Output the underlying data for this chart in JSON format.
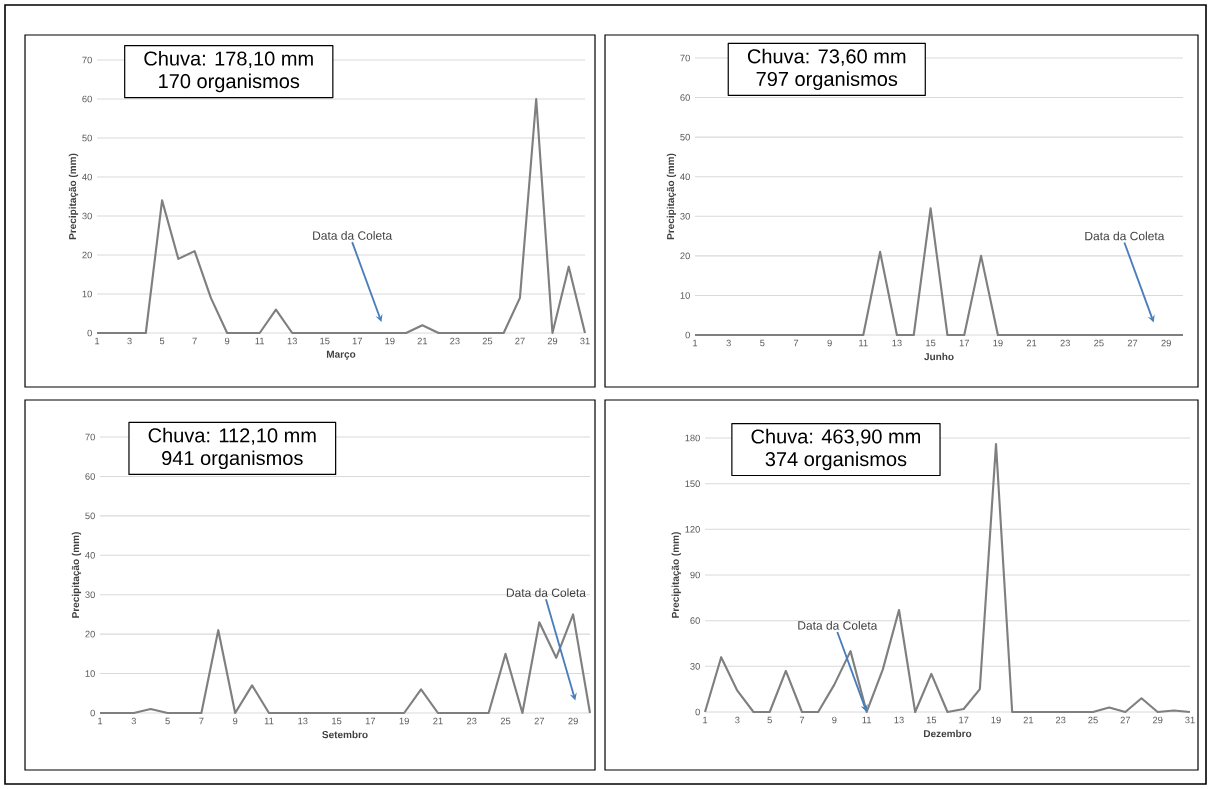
{
  "chart_data": [
    {
      "type": "line",
      "xlabel": "Março",
      "ylabel": "Precipitação (mm)",
      "color": "#7f7f7f",
      "grid": "y",
      "x": [
        1,
        2,
        3,
        4,
        5,
        6,
        7,
        8,
        9,
        10,
        11,
        12,
        13,
        14,
        15,
        16,
        17,
        18,
        19,
        20,
        21,
        22,
        23,
        24,
        25,
        26,
        27,
        28,
        29,
        30,
        31
      ],
      "values": [
        0,
        0,
        0,
        0,
        34,
        19,
        21,
        9,
        0,
        0,
        0,
        6,
        0,
        0,
        0,
        0,
        0,
        0,
        0,
        0,
        2,
        0,
        0,
        0,
        0,
        0,
        9,
        60,
        0,
        17,
        0
      ],
      "xlim": [
        1,
        31
      ],
      "ylim": [
        0,
        70
      ],
      "xticks": [
        1,
        3,
        5,
        7,
        9,
        11,
        13,
        15,
        17,
        19,
        21,
        23,
        25,
        27,
        29,
        31
      ],
      "yticks": [
        0,
        10,
        20,
        30,
        40,
        50,
        60,
        70
      ],
      "annotations": [
        "Chuva: 178,10 mm",
        "170 organismos",
        "Data da Coleta"
      ]
    },
    {
      "type": "line",
      "xlabel": "Junho",
      "ylabel": "Precipitação (mm)",
      "color": "#7f7f7f",
      "grid": "y",
      "x": [
        1,
        2,
        3,
        4,
        5,
        6,
        7,
        8,
        9,
        10,
        11,
        12,
        13,
        14,
        15,
        16,
        17,
        18,
        19,
        20,
        21,
        22,
        23,
        24,
        25,
        26,
        27,
        28,
        29,
        30
      ],
      "values": [
        0,
        0,
        0,
        0,
        0,
        0,
        0,
        0,
        0,
        0,
        0,
        21,
        0,
        0,
        32,
        0,
        0,
        20,
        0,
        0,
        0,
        0,
        0,
        0,
        0,
        0,
        0,
        0,
        0,
        0
      ],
      "xlim": [
        1,
        30
      ],
      "ylim": [
        0,
        70
      ],
      "xticks": [
        1,
        3,
        5,
        7,
        9,
        11,
        13,
        15,
        17,
        19,
        21,
        23,
        25,
        27,
        29
      ],
      "yticks": [
        0,
        10,
        20,
        30,
        40,
        50,
        60,
        70
      ],
      "annotations": [
        "Chuva: 73,60 mm",
        "797 organismos",
        "Data da Coleta"
      ]
    },
    {
      "type": "line",
      "xlabel": "Setembro",
      "ylabel": "Precipitação (mm)",
      "color": "#7f7f7f",
      "grid": "y",
      "x": [
        1,
        2,
        3,
        4,
        5,
        6,
        7,
        8,
        9,
        10,
        11,
        12,
        13,
        14,
        15,
        16,
        17,
        18,
        19,
        20,
        21,
        22,
        23,
        24,
        25,
        26,
        27,
        28,
        29,
        30
      ],
      "values": [
        0,
        0,
        0,
        1,
        0,
        0,
        0,
        21,
        0,
        7,
        0,
        0,
        0,
        0,
        0,
        0,
        0,
        0,
        0,
        6,
        0,
        0,
        0,
        0,
        15,
        0,
        23,
        14,
        25,
        0
      ],
      "xlim": [
        1,
        30
      ],
      "ylim": [
        0,
        70
      ],
      "xticks": [
        1,
        3,
        5,
        7,
        9,
        11,
        13,
        15,
        17,
        19,
        21,
        23,
        25,
        27,
        29
      ],
      "yticks": [
        0,
        10,
        20,
        30,
        40,
        50,
        60,
        70
      ],
      "annotations": [
        "Chuva: 112,10 mm",
        "941 organismos",
        "Data da Coleta"
      ]
    },
    {
      "type": "line",
      "xlabel": "Dezembro",
      "ylabel": "Precipitação (mm)",
      "color": "#7f7f7f",
      "grid": "y",
      "x": [
        1,
        2,
        3,
        4,
        5,
        6,
        7,
        8,
        9,
        10,
        11,
        12,
        13,
        14,
        15,
        16,
        17,
        18,
        19,
        20,
        21,
        22,
        23,
        24,
        25,
        26,
        27,
        28,
        29,
        30,
        31
      ],
      "values": [
        0,
        36,
        14,
        0,
        0,
        27,
        0,
        0,
        18,
        40,
        0,
        28,
        67,
        0,
        25,
        0,
        2,
        15,
        176,
        0,
        0,
        0,
        0,
        0,
        0,
        3,
        0,
        9,
        0,
        1,
        0
      ],
      "xlim": [
        1,
        31
      ],
      "ylim": [
        0,
        180
      ],
      "xticks": [
        1,
        3,
        5,
        7,
        9,
        11,
        13,
        15,
        17,
        19,
        21,
        23,
        25,
        27,
        29,
        31
      ],
      "yticks": [
        0,
        30,
        60,
        90,
        120,
        150,
        180
      ],
      "annotations": [
        "Chuva: 463,90 mm",
        "374 organismos",
        {
          "text": "Data da Coleta",
          "x": 11,
          "y": 0
        }
      ]
    }
  ]
}
